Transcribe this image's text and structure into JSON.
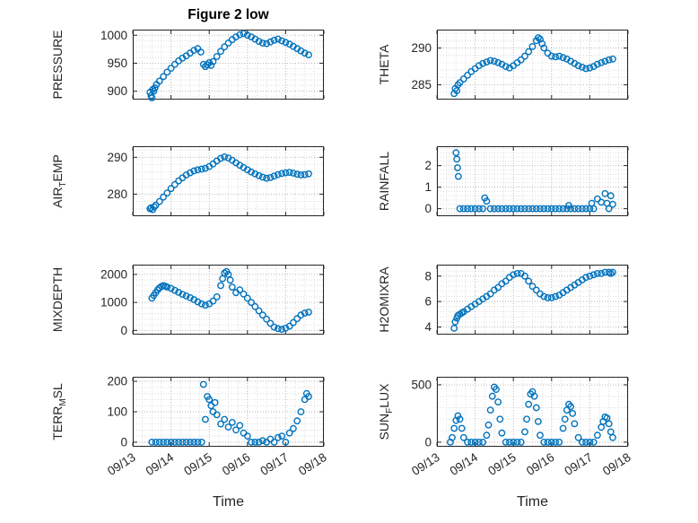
{
  "colors": {
    "marker": "#0072BD",
    "axes": "#262626",
    "grid_major": "#b8b8b8",
    "grid_minor": "#dcdcdc"
  },
  "marker": {
    "radius": 3.2,
    "stroke_width": 1.4
  },
  "chart_data": {
    "type": "scatter",
    "figure_title": "Figure 2 low",
    "legend": "none",
    "grid": "major and minor, dotted",
    "x_axis": {
      "label": "Time",
      "xlim": [
        0,
        5
      ],
      "major_ticks": [
        0,
        1,
        2,
        3,
        4,
        5
      ],
      "tick_labels": [
        "09/13",
        "09/14",
        "09/15",
        "09/16",
        "09/17",
        "09/18"
      ],
      "minor_step": 0.25
    },
    "charts": [
      {
        "id": "pressure",
        "name": "PRESSURE",
        "row": 0,
        "col": 0,
        "ylabel": [
          {
            "t": "PRESSURE"
          }
        ],
        "ylim": [
          885,
          1010
        ],
        "yticks": [
          900,
          950,
          1000
        ],
        "x": [
          0.45,
          0.48,
          0.5,
          0.52,
          0.55,
          0.58,
          0.62,
          0.7,
          0.8,
          0.9,
          1.0,
          1.1,
          1.2,
          1.3,
          1.4,
          1.5,
          1.6,
          1.7,
          1.78,
          1.85,
          1.9,
          1.95,
          2.0,
          2.05,
          2.1,
          2.2,
          2.3,
          2.4,
          2.5,
          2.6,
          2.7,
          2.8,
          2.9,
          3.0,
          3.1,
          3.2,
          3.3,
          3.4,
          3.5,
          3.6,
          3.7,
          3.8,
          3.9,
          4.0,
          4.1,
          4.2,
          4.3,
          4.4,
          4.5,
          4.6
        ],
        "y": [
          898,
          892,
          888,
          903,
          900,
          906,
          912,
          918,
          926,
          934,
          941,
          948,
          954,
          959,
          963,
          968,
          973,
          976,
          970,
          948,
          944,
          947,
          951,
          946,
          953,
          962,
          971,
          979,
          986,
          992,
          997,
          1001,
          1003,
          1000,
          997,
          993,
          989,
          986,
          985,
          988,
          991,
          993,
          990,
          987,
          984,
          980,
          976,
          972,
          968,
          965
        ]
      },
      {
        "id": "theta",
        "name": "THETA",
        "row": 0,
        "col": 1,
        "ylabel": [
          {
            "t": "THETA"
          }
        ],
        "ylim": [
          283,
          292.5
        ],
        "yticks": [
          285,
          290
        ],
        "x": [
          0.45,
          0.48,
          0.52,
          0.55,
          0.6,
          0.7,
          0.8,
          0.9,
          1.0,
          1.1,
          1.2,
          1.3,
          1.4,
          1.5,
          1.6,
          1.7,
          1.8,
          1.9,
          2.0,
          2.1,
          2.2,
          2.3,
          2.4,
          2.5,
          2.6,
          2.65,
          2.7,
          2.75,
          2.8,
          2.9,
          3.0,
          3.1,
          3.2,
          3.3,
          3.4,
          3.5,
          3.6,
          3.7,
          3.8,
          3.9,
          4.0,
          4.1,
          4.2,
          4.3,
          4.4,
          4.5,
          4.6
        ],
        "y": [
          283.8,
          284.5,
          284.2,
          285.0,
          285.3,
          285.8,
          286.3,
          286.8,
          287.2,
          287.6,
          287.9,
          288.1,
          288.3,
          288.2,
          288.0,
          287.8,
          287.5,
          287.3,
          287.6,
          288.0,
          288.4,
          288.9,
          289.5,
          290.2,
          291.0,
          291.4,
          291.2,
          290.6,
          290.0,
          289.3,
          288.9,
          288.8,
          288.9,
          288.7,
          288.5,
          288.2,
          287.9,
          287.6,
          287.4,
          287.2,
          287.3,
          287.5,
          287.8,
          288.0,
          288.2,
          288.4,
          288.5
        ]
      },
      {
        "id": "air-temp",
        "name": "AIR_TEMP",
        "row": 1,
        "col": 0,
        "ylabel": [
          {
            "t": "AIR"
          },
          {
            "t": "T",
            "sub": true
          },
          {
            "t": "EMP"
          }
        ],
        "ylim": [
          274,
          293
        ],
        "yticks": [
          280,
          290
        ],
        "x": [
          0.45,
          0.48,
          0.52,
          0.56,
          0.6,
          0.7,
          0.8,
          0.9,
          1.0,
          1.1,
          1.2,
          1.3,
          1.4,
          1.5,
          1.6,
          1.7,
          1.8,
          1.9,
          2.0,
          2.1,
          2.2,
          2.3,
          2.4,
          2.5,
          2.6,
          2.7,
          2.8,
          2.9,
          3.0,
          3.1,
          3.2,
          3.3,
          3.4,
          3.5,
          3.6,
          3.7,
          3.8,
          3.9,
          4.0,
          4.1,
          4.2,
          4.3,
          4.4,
          4.5,
          4.6
        ],
        "y": [
          276.0,
          276.3,
          275.8,
          276.5,
          277.0,
          278.0,
          279.2,
          280.3,
          281.5,
          282.6,
          283.6,
          284.4,
          285.2,
          285.8,
          286.3,
          286.6,
          286.8,
          287.0,
          287.5,
          288.2,
          289.0,
          289.7,
          290.1,
          289.8,
          289.2,
          288.5,
          287.8,
          287.2,
          286.6,
          286.0,
          285.5,
          285.0,
          284.6,
          284.3,
          284.5,
          284.9,
          285.3,
          285.6,
          285.8,
          285.9,
          285.7,
          285.4,
          285.2,
          285.3,
          285.5
        ]
      },
      {
        "id": "rainfall",
        "name": "RAINFALL",
        "row": 1,
        "col": 1,
        "ylabel": [
          {
            "t": "RAINFALL"
          }
        ],
        "ylim": [
          -0.35,
          2.9
        ],
        "yticks": [
          0,
          1,
          2
        ],
        "x": [
          0.5,
          0.52,
          0.54,
          0.56,
          0.6,
          0.7,
          0.8,
          0.9,
          1.0,
          1.1,
          1.2,
          1.25,
          1.3,
          1.4,
          1.5,
          1.6,
          1.7,
          1.8,
          1.9,
          2.0,
          2.1,
          2.2,
          2.3,
          2.4,
          2.5,
          2.6,
          2.7,
          2.8,
          2.9,
          3.0,
          3.1,
          3.2,
          3.3,
          3.4,
          3.45,
          3.5,
          3.6,
          3.7,
          3.8,
          3.9,
          4.0,
          4.05,
          4.1,
          4.2,
          4.3,
          4.4,
          4.45,
          4.5,
          4.55,
          4.6
        ],
        "y": [
          2.6,
          2.3,
          1.9,
          1.5,
          0,
          0,
          0,
          0,
          0,
          0,
          0,
          0.5,
          0.35,
          0,
          0,
          0,
          0,
          0,
          0,
          0,
          0,
          0,
          0,
          0,
          0,
          0,
          0,
          0,
          0,
          0,
          0,
          0,
          0,
          0,
          0.15,
          0,
          0,
          0,
          0,
          0,
          0,
          0.25,
          0,
          0.45,
          0.3,
          0.7,
          0.25,
          0,
          0.6,
          0.2
        ]
      },
      {
        "id": "mixdepth",
        "name": "MIXDEPTH",
        "row": 2,
        "col": 0,
        "ylabel": [
          {
            "t": "MIXDEPTH"
          }
        ],
        "ylim": [
          -150,
          2350
        ],
        "yticks": [
          0,
          1000,
          2000
        ],
        "x": [
          0.5,
          0.55,
          0.6,
          0.65,
          0.7,
          0.75,
          0.8,
          0.85,
          0.9,
          1.0,
          1.1,
          1.2,
          1.3,
          1.4,
          1.5,
          1.6,
          1.7,
          1.8,
          1.9,
          2.0,
          2.1,
          2.2,
          2.3,
          2.35,
          2.4,
          2.45,
          2.5,
          2.55,
          2.6,
          2.7,
          2.8,
          2.9,
          3.0,
          3.1,
          3.2,
          3.3,
          3.4,
          3.5,
          3.6,
          3.7,
          3.8,
          3.9,
          4.0,
          4.1,
          4.2,
          4.3,
          4.4,
          4.5,
          4.6
        ],
        "y": [
          1150,
          1250,
          1350,
          1450,
          1520,
          1570,
          1600,
          1580,
          1550,
          1500,
          1430,
          1360,
          1290,
          1230,
          1170,
          1100,
          1020,
          950,
          900,
          950,
          1050,
          1200,
          1600,
          1850,
          2050,
          2100,
          2000,
          1800,
          1550,
          1350,
          1450,
          1300,
          1150,
          1000,
          850,
          700,
          550,
          400,
          250,
          120,
          60,
          40,
          80,
          150,
          280,
          420,
          550,
          620,
          650
        ]
      },
      {
        "id": "h2omixra",
        "name": "H2OMIXRA",
        "row": 2,
        "col": 1,
        "ylabel": [
          {
            "t": "H2OMIXRA"
          }
        ],
        "ylim": [
          3.4,
          8.9
        ],
        "yticks": [
          4,
          6,
          8
        ],
        "x": [
          0.45,
          0.48,
          0.52,
          0.55,
          0.6,
          0.65,
          0.7,
          0.8,
          0.9,
          1.0,
          1.1,
          1.2,
          1.3,
          1.4,
          1.5,
          1.6,
          1.7,
          1.8,
          1.9,
          2.0,
          2.1,
          2.2,
          2.3,
          2.4,
          2.5,
          2.6,
          2.7,
          2.8,
          2.9,
          3.0,
          3.1,
          3.2,
          3.3,
          3.4,
          3.5,
          3.6,
          3.7,
          3.8,
          3.9,
          4.0,
          4.1,
          4.2,
          4.3,
          4.4,
          4.5,
          4.55,
          4.6
        ],
        "y": [
          3.9,
          4.4,
          4.7,
          4.9,
          5.0,
          5.1,
          5.2,
          5.4,
          5.6,
          5.8,
          6.0,
          6.2,
          6.4,
          6.6,
          6.9,
          7.1,
          7.4,
          7.6,
          7.9,
          8.1,
          8.2,
          8.2,
          8.0,
          7.6,
          7.2,
          6.9,
          6.6,
          6.4,
          6.3,
          6.3,
          6.4,
          6.5,
          6.7,
          6.9,
          7.1,
          7.3,
          7.5,
          7.7,
          7.9,
          8.0,
          8.1,
          8.2,
          8.2,
          8.3,
          8.3,
          8.2,
          8.3
        ]
      },
      {
        "id": "terr-msl",
        "name": "TERR_MSL",
        "row": 3,
        "col": 0,
        "ylabel": [
          {
            "t": "TERR"
          },
          {
            "t": "M",
            "sub": true
          },
          {
            "t": "SL"
          }
        ],
        "ylim": [
          -15,
          215
        ],
        "yticks": [
          0,
          100,
          200
        ],
        "x": [
          0.5,
          0.6,
          0.7,
          0.8,
          0.9,
          1.0,
          1.1,
          1.2,
          1.3,
          1.4,
          1.5,
          1.6,
          1.7,
          1.8,
          1.85,
          1.9,
          1.95,
          2.0,
          2.05,
          2.1,
          2.15,
          2.2,
          2.3,
          2.4,
          2.5,
          2.6,
          2.7,
          2.8,
          2.9,
          3.0,
          3.1,
          3.2,
          3.3,
          3.4,
          3.5,
          3.6,
          3.7,
          3.8,
          3.9,
          4.0,
          4.1,
          4.2,
          4.3,
          4.4,
          4.5,
          4.55,
          4.6
        ],
        "y": [
          0,
          0,
          0,
          0,
          0,
          0,
          0,
          0,
          0,
          0,
          0,
          0,
          0,
          0,
          190,
          75,
          150,
          140,
          120,
          100,
          130,
          90,
          60,
          75,
          50,
          65,
          40,
          55,
          30,
          20,
          0,
          0,
          0,
          5,
          0,
          10,
          0,
          15,
          20,
          0,
          30,
          45,
          70,
          100,
          140,
          160,
          150
        ]
      },
      {
        "id": "sun-flux",
        "name": "SUN_FLUX",
        "row": 3,
        "col": 1,
        "ylabel": [
          {
            "t": "SUN"
          },
          {
            "t": "F",
            "sub": true
          },
          {
            "t": "LUX"
          }
        ],
        "ylim": [
          -40,
          570
        ],
        "yticks": [
          0,
          500
        ],
        "x": [
          0.35,
          0.4,
          0.45,
          0.5,
          0.55,
          0.6,
          0.65,
          0.7,
          0.8,
          0.9,
          1.0,
          1.1,
          1.2,
          1.3,
          1.35,
          1.4,
          1.45,
          1.5,
          1.55,
          1.6,
          1.65,
          1.7,
          1.8,
          1.9,
          2.0,
          2.1,
          2.2,
          2.3,
          2.35,
          2.4,
          2.45,
          2.5,
          2.55,
          2.6,
          2.65,
          2.7,
          2.8,
          2.9,
          3.0,
          3.1,
          3.2,
          3.3,
          3.35,
          3.4,
          3.45,
          3.5,
          3.55,
          3.6,
          3.7,
          3.8,
          3.9,
          4.0,
          4.1,
          4.2,
          4.3,
          4.35,
          4.4,
          4.45,
          4.5,
          4.55,
          4.6
        ],
        "y": [
          0,
          40,
          120,
          190,
          230,
          200,
          120,
          40,
          0,
          0,
          0,
          0,
          0,
          60,
          150,
          280,
          400,
          480,
          460,
          350,
          200,
          80,
          0,
          0,
          0,
          0,
          0,
          90,
          200,
          330,
          420,
          440,
          400,
          300,
          180,
          60,
          0,
          0,
          0,
          0,
          0,
          120,
          200,
          280,
          330,
          310,
          250,
          160,
          40,
          0,
          0,
          0,
          0,
          60,
          130,
          180,
          220,
          210,
          160,
          90,
          40
        ]
      }
    ]
  }
}
